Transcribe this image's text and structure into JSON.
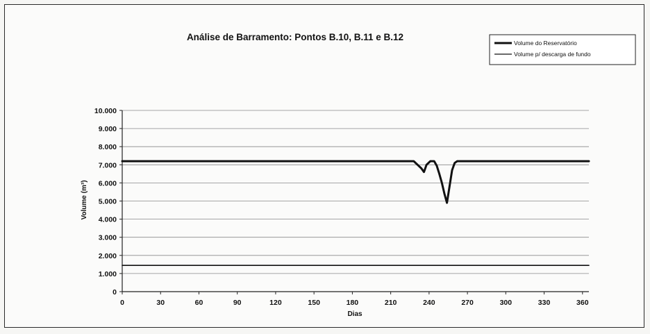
{
  "chart_data": {
    "type": "line",
    "title": "Análise de Barramento: Pontos B.10, B.11 e B.12",
    "xlabel": "Dias",
    "ylabel": "Volume (m³)",
    "xlim": [
      0,
      365
    ],
    "ylim": [
      0,
      10000
    ],
    "xticks": [
      0,
      30,
      60,
      90,
      120,
      150,
      180,
      210,
      240,
      270,
      300,
      330,
      360
    ],
    "yticks": [
      0,
      1000,
      2000,
      3000,
      4000,
      5000,
      6000,
      7000,
      8000,
      9000,
      10000
    ],
    "ytick_labels": [
      "0",
      "1.000",
      "2.000",
      "3.000",
      "4.000",
      "5.000",
      "6.000",
      "7.000",
      "8.000",
      "9.000",
      "10.000"
    ],
    "grid": "horizontal",
    "legend_position": "top-right",
    "series": [
      {
        "name": "Volume do Reservatório",
        "color": "#111111",
        "style": "thick",
        "x": [
          0,
          228,
          231,
          234,
          236,
          238,
          241,
          244,
          246,
          248,
          250,
          252,
          254,
          256,
          258,
          260,
          262,
          265,
          270,
          365
        ],
        "y": [
          7200,
          7200,
          7000,
          6800,
          6600,
          7000,
          7200,
          7200,
          6950,
          6500,
          6000,
          5400,
          4900,
          5800,
          6700,
          7100,
          7200,
          7200,
          7200,
          7200
        ]
      },
      {
        "name": "Volume p/ descarga de fundo",
        "color": "#111111",
        "style": "thin",
        "x": [
          0,
          365
        ],
        "y": [
          1450,
          1450
        ]
      }
    ]
  }
}
